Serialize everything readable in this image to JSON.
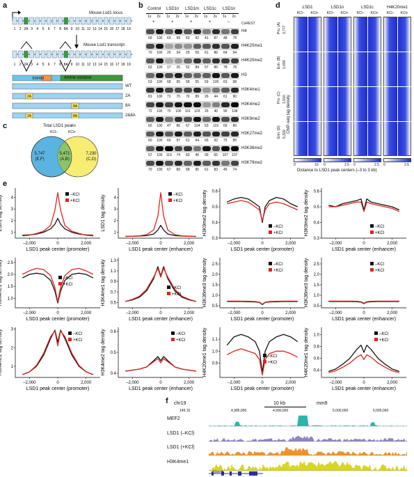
{
  "panels": {
    "a": "a",
    "b": "b",
    "c": "c",
    "d": "d",
    "e": "e",
    "f": "f"
  },
  "panel_a": {
    "locus_label": "Mouse Lsd1 locus",
    "transcript_label": "Mouse Lsd1 transcript",
    "exons": [
      "1",
      "2",
      "2A",
      "3",
      "4",
      "5",
      "6",
      "7",
      "8",
      "8A",
      "9",
      "10",
      "11",
      "12",
      "13",
      "14",
      "15",
      "16",
      "17",
      "18",
      "19"
    ],
    "domains": [
      "SWIRM",
      "Amine oxidase"
    ],
    "isoforms": [
      {
        "name": "WT",
        "inserts": []
      },
      {
        "name": "2A",
        "inserts": [
          "2A"
        ]
      },
      {
        "name": "8A",
        "inserts": [
          "8A"
        ]
      },
      {
        "name": "2&8A",
        "inserts": [
          "2A",
          "8A"
        ]
      }
    ]
  },
  "panel_b": {
    "groups": [
      "Control",
      "LSD1n",
      "LSD1m",
      "LSD1c",
      "LSD1n"
    ],
    "doses": [
      "1x",
      "2x",
      "1x",
      "2x",
      "1x",
      "2x",
      "1x",
      "2x",
      "1x",
      "2x"
    ],
    "corest_row": [
      "+",
      "",
      "+",
      "",
      "+",
      "",
      "+",
      "",
      "–",
      ""
    ],
    "corest_label": "CoREST",
    "rows": [
      {
        "name": "H4",
        "values": [
          "69",
          "100",
          "63",
          "99",
          "63",
          "92",
          "41",
          "87",
          "48",
          "78"
        ]
      },
      {
        "name": "H4K20me1",
        "values": [
          "70",
          "100",
          "20",
          "34",
          "29",
          "59",
          "61",
          "86",
          "64",
          "94"
        ]
      },
      {
        "name": "H4K20me2",
        "values": [
          "62",
          "100",
          "17",
          "26",
          "52",
          "84",
          "57",
          "86",
          "78",
          "78"
        ]
      },
      {
        "name": "H3",
        "values": [
          "53",
          "100",
          "68",
          "95",
          "58",
          "55",
          "59",
          "100",
          "63",
          "98"
        ]
      },
      {
        "name": "H3K4me1",
        "values": [
          "81",
          "100",
          "71",
          "70",
          "70",
          "89",
          "26",
          "44",
          "61",
          "90"
        ]
      },
      {
        "name": "H3K4me2",
        "values": [
          "72",
          "100",
          "75",
          "100",
          "101",
          "103",
          "25",
          "40",
          "90",
          "108"
        ]
      },
      {
        "name": "H3K9me2",
        "values": [
          "60",
          "100",
          "47",
          "86",
          "67",
          "104",
          "53",
          "101",
          "69",
          "89"
        ]
      },
      {
        "name": "H3K27me2",
        "values": [
          "60",
          "100",
          "60",
          "97",
          "61",
          "94",
          "65",
          "92",
          "75",
          "89"
        ]
      },
      {
        "name": "H3K36me2",
        "values": [
          "57",
          "100",
          "119",
          "74",
          "83",
          "46",
          "99",
          "65",
          "107",
          "107"
        ]
      },
      {
        "name": "H3K79me2",
        "values": [
          "70",
          "100",
          "67",
          "89",
          "58",
          "95",
          "61",
          "83",
          "45",
          "74"
        ]
      }
    ]
  },
  "panel_c": {
    "title": "Total LSD1 peaks",
    "left_label": "KCl–",
    "right_label": "KCl+",
    "left_only": "5,747",
    "left_only_sub": "(E,F)",
    "overlap": "5,471",
    "overlap_sub": "(A,B)",
    "right_only": "7,230",
    "right_only_sub": "(C,D)"
  },
  "panel_d": {
    "columns": [
      "LSD1",
      "LSD1n",
      "LSD1c",
      "H4K20me1"
    ],
    "subcols": [
      "KCl–",
      "KCl+"
    ],
    "y_axis_title": "ChIP-seq tag density",
    "groups": [
      {
        "label": "Pro. (A)",
        "count": "3,777"
      },
      {
        "label": "Enh. (B)",
        "count": "1,694"
      },
      {
        "label": "Pro. (C)",
        "count": "1,910"
      },
      {
        "label": "Enh. (D)",
        "count": "5,320"
      }
    ],
    "scales": [
      [
        "0",
        "10"
      ],
      [
        "0",
        "2.5"
      ],
      [
        "0",
        "2.5"
      ],
      [
        "0",
        "2.5"
      ]
    ],
    "x_axis_title": "Distance to LSD1 peak centers (–3 to 3 kb)"
  },
  "panel_e": {
    "legend": {
      "minus": "–KCl",
      "plus": "+KCl"
    },
    "colors": {
      "minus": "#111111",
      "plus": "#e0231d"
    }
  },
  "chart_data": [
    {
      "type": "line",
      "ylabel": "LSD1 tag density",
      "xlabel": "LSD1 peak center (promoter)",
      "x": [
        -2500,
        -2000,
        -1500,
        -1000,
        -500,
        -200,
        0,
        200,
        500,
        1000,
        1500,
        2000,
        2500
      ],
      "xticks": [
        "–2,000",
        "0",
        "2,000"
      ],
      "ylim": [
        0.5,
        4.8
      ],
      "yticks": [
        "1",
        "2",
        "3",
        "4"
      ],
      "series": [
        {
          "name": "–KCl",
          "values": [
            0.75,
            0.78,
            0.85,
            1.0,
            1.3,
            1.7,
            2.2,
            1.7,
            1.3,
            1.0,
            0.85,
            0.78,
            0.75
          ]
        },
        {
          "name": "+KCl",
          "values": [
            0.7,
            0.75,
            0.9,
            1.1,
            1.6,
            2.9,
            4.4,
            2.9,
            1.6,
            1.1,
            0.9,
            0.75,
            0.7
          ]
        }
      ]
    },
    {
      "type": "line",
      "ylabel": "LSD1 tag density",
      "xlabel": "LSD1 peak center (enhancer)",
      "x": [
        -2500,
        -2000,
        -1500,
        -1000,
        -500,
        -200,
        0,
        200,
        500,
        1000,
        1500,
        2000,
        2500
      ],
      "xticks": [
        "–2,000",
        "0",
        "2,000"
      ],
      "ylim": [
        0.5,
        4.8
      ],
      "yticks": [
        "1",
        "2",
        "3",
        "4"
      ],
      "series": [
        {
          "name": "–KCl",
          "values": [
            0.65,
            0.66,
            0.68,
            0.72,
            0.85,
            1.2,
            1.6,
            1.2,
            0.85,
            0.72,
            0.68,
            0.66,
            0.65
          ]
        },
        {
          "name": "+KCl",
          "values": [
            0.65,
            0.67,
            0.7,
            0.8,
            1.2,
            2.4,
            4.4,
            2.4,
            1.2,
            0.8,
            0.7,
            0.67,
            0.65
          ]
        }
      ]
    },
    {
      "type": "line",
      "ylabel": "H3K9me2 tag density",
      "xlabel": "LSD1 peak center (promoter)",
      "x": [
        -2500,
        -2000,
        -1500,
        -1000,
        -500,
        -200,
        0,
        200,
        500,
        1000,
        1500,
        2000,
        2500
      ],
      "xticks": [
        "–2,000",
        "0",
        "2,000"
      ],
      "ylim": [
        0.3,
        0.62
      ],
      "yticks": [
        "0.3",
        "0.4",
        "0.5",
        "0.6"
      ],
      "series": [
        {
          "name": "–KCl",
          "values": [
            0.53,
            0.55,
            0.56,
            0.55,
            0.52,
            0.5,
            0.4,
            0.5,
            0.54,
            0.56,
            0.55,
            0.52,
            0.5
          ]
        },
        {
          "name": "+KCl",
          "values": [
            0.52,
            0.53,
            0.54,
            0.53,
            0.5,
            0.48,
            0.41,
            0.48,
            0.52,
            0.53,
            0.52,
            0.5,
            0.48
          ]
        }
      ]
    },
    {
      "type": "line",
      "ylabel": "H3K9me2 tag density",
      "xlabel": "LSD1 peak center (enhancer)",
      "x": [
        -2500,
        -2000,
        -1500,
        -1000,
        -500,
        -200,
        0,
        200,
        500,
        1000,
        1500,
        2000,
        2500
      ],
      "xticks": [
        "–2,000",
        "0",
        "2,000"
      ],
      "ylim": [
        0.3,
        0.62
      ],
      "yticks": [
        "0.3",
        "0.4",
        "0.5",
        "0.6"
      ],
      "series": [
        {
          "name": "–KCl",
          "values": [
            0.51,
            0.5,
            0.52,
            0.53,
            0.54,
            0.55,
            0.48,
            0.55,
            0.53,
            0.52,
            0.51,
            0.5,
            0.48
          ]
        },
        {
          "name": "+KCl",
          "values": [
            0.5,
            0.5,
            0.51,
            0.52,
            0.53,
            0.53,
            0.47,
            0.53,
            0.52,
            0.51,
            0.5,
            0.49,
            0.47
          ]
        }
      ]
    },
    {
      "type": "line",
      "ylabel": "H3K4me1 tag density",
      "xlabel": "LSD1 peak center (promoter)",
      "x": [
        -2500,
        -2000,
        -1500,
        -1000,
        -500,
        -200,
        0,
        200,
        500,
        1000,
        1500,
        2000,
        2500
      ],
      "xticks": [
        "–2,000",
        "0",
        "2,000"
      ],
      "ylim": [
        0.6,
        2.7
      ],
      "yticks": [
        "1.0",
        "1.5",
        "2.0",
        "2.5"
      ],
      "series": [
        {
          "name": "–KCl",
          "values": [
            1.85,
            2.0,
            2.05,
            2.0,
            1.75,
            1.3,
            0.8,
            1.3,
            1.75,
            2.0,
            2.05,
            2.0,
            1.85
          ]
        },
        {
          "name": "+KCl",
          "values": [
            2.0,
            2.15,
            2.25,
            2.2,
            1.95,
            1.45,
            0.85,
            1.45,
            1.95,
            2.2,
            2.25,
            2.15,
            2.0
          ]
        }
      ]
    },
    {
      "type": "line",
      "ylabel": "H3K4me1 tag density",
      "xlabel": "LSD1 peak center (enhancer)",
      "x": [
        -2500,
        -2000,
        -1500,
        -1000,
        -500,
        -200,
        0,
        200,
        500,
        1000,
        1500,
        2000,
        2500
      ],
      "xticks": [
        "–2,000",
        "0",
        "2,000"
      ],
      "ylim": [
        0.4,
        1.35
      ],
      "yticks": [
        "0.5",
        "0.7",
        "0.9",
        "1.1",
        "1.3"
      ],
      "series": [
        {
          "name": "–KCl",
          "values": [
            0.52,
            0.55,
            0.6,
            0.72,
            0.95,
            1.18,
            1.0,
            1.18,
            0.95,
            0.72,
            0.6,
            0.55,
            0.52
          ]
        },
        {
          "name": "+KCl",
          "values": [
            0.52,
            0.56,
            0.62,
            0.75,
            0.98,
            1.15,
            0.98,
            1.15,
            0.98,
            0.75,
            0.62,
            0.56,
            0.52
          ]
        }
      ]
    },
    {
      "type": "line",
      "ylabel": "H3K36me3 tag density",
      "xlabel": "LSD1 peak center (promoter)",
      "x": [
        -2500,
        -2000,
        -1500,
        -1000,
        -500,
        -200,
        0,
        200,
        500,
        1000,
        1500,
        2000,
        2500
      ],
      "xticks": [
        "–2,000",
        "0",
        "2,000"
      ],
      "ylim": [
        0.4,
        2.8
      ],
      "yticks": [
        "0.5",
        "1.0",
        "1.5",
        "2.0",
        "2.5"
      ],
      "series": [
        {
          "name": "–KCl",
          "values": [
            0.7,
            0.7,
            0.7,
            0.69,
            0.68,
            0.66,
            0.55,
            0.66,
            0.68,
            0.69,
            0.7,
            0.7,
            0.7
          ]
        },
        {
          "name": "+KCl",
          "values": [
            0.72,
            0.72,
            0.72,
            0.71,
            0.7,
            0.67,
            0.57,
            0.67,
            0.7,
            0.71,
            0.72,
            0.72,
            0.72
          ]
        }
      ]
    },
    {
      "type": "line",
      "ylabel": "H3K36me3 tag density",
      "xlabel": "LSD1 peak center (enhancer)",
      "x": [
        -2500,
        -2000,
        -1500,
        -1000,
        -500,
        -200,
        0,
        200,
        500,
        1000,
        1500,
        2000,
        2500
      ],
      "xticks": [
        "–2,000",
        "0",
        "2,000"
      ],
      "ylim": [
        0.4,
        2.8
      ],
      "yticks": [
        "0.5",
        "1.0",
        "1.5",
        "2.0",
        "2.5"
      ],
      "series": [
        {
          "name": "–KCl",
          "values": [
            0.7,
            0.7,
            0.7,
            0.7,
            0.69,
            0.67,
            0.6,
            0.67,
            0.69,
            0.7,
            0.7,
            0.7,
            0.7
          ]
        },
        {
          "name": "+KCl",
          "values": [
            0.72,
            0.72,
            0.72,
            0.72,
            0.71,
            0.69,
            0.62,
            0.69,
            0.71,
            0.72,
            0.72,
            0.72,
            0.72
          ]
        }
      ]
    },
    {
      "type": "line",
      "ylabel": "H3K4me2 tag density",
      "xlabel": "LSD1 peak center (promoter)",
      "x": [
        -2500,
        -2000,
        -1500,
        -1000,
        -500,
        -200,
        0,
        200,
        500,
        1000,
        1500,
        2000,
        2500
      ],
      "xticks": [
        "–2,000",
        "0",
        "2,000"
      ],
      "ylim": [
        0.4,
        3.1
      ],
      "yticks": [
        "1",
        "2",
        "3"
      ],
      "series": [
        {
          "name": "–KCl",
          "values": [
            0.55,
            0.7,
            1.0,
            1.6,
            2.5,
            2.95,
            2.3,
            2.95,
            2.5,
            1.6,
            1.0,
            0.7,
            0.55
          ]
        },
        {
          "name": "+KCl",
          "values": [
            0.55,
            0.7,
            1.05,
            1.7,
            2.6,
            2.9,
            2.1,
            2.9,
            2.6,
            1.7,
            1.05,
            0.7,
            0.55
          ]
        }
      ]
    },
    {
      "type": "line",
      "ylabel": "H3K4me2 tag density",
      "xlabel": "LSD1 peak center (enhancer)",
      "x": [
        -2500,
        -2000,
        -1500,
        -1000,
        -500,
        -200,
        0,
        200,
        500,
        1000,
        1500,
        2000,
        2500
      ],
      "xticks": [
        "–2,000",
        "0",
        "2,000"
      ],
      "ylim": [
        0.38,
        0.62
      ],
      "yticks": [
        "0.4",
        "0.5",
        "0.6"
      ],
      "series": [
        {
          "name": "–KCl",
          "values": [
            0.41,
            0.415,
            0.42,
            0.43,
            0.46,
            0.48,
            0.46,
            0.48,
            0.46,
            0.43,
            0.42,
            0.415,
            0.41
          ]
        },
        {
          "name": "+KCl",
          "values": [
            0.41,
            0.415,
            0.42,
            0.43,
            0.455,
            0.47,
            0.45,
            0.47,
            0.455,
            0.43,
            0.42,
            0.415,
            0.41
          ]
        }
      ]
    },
    {
      "type": "line",
      "ylabel": "H4K20me1 tag density",
      "xlabel": "LSD1 peak center (promoter)",
      "x": [
        -2500,
        -2000,
        -1500,
        -1000,
        -500,
        -200,
        0,
        200,
        500,
        1000,
        1500,
        2000,
        2500
      ],
      "xticks": [
        "–2,000",
        "0",
        "2,000"
      ],
      "ylim": [
        0.78,
        1.2
      ],
      "yticks": [
        "0.9",
        "1.0",
        "1.1"
      ],
      "series": [
        {
          "name": "–KCl",
          "values": [
            1.05,
            1.12,
            1.14,
            1.12,
            1.08,
            1.0,
            0.82,
            1.0,
            1.08,
            1.12,
            1.14,
            1.12,
            1.08
          ]
        },
        {
          "name": "+KCl",
          "values": [
            0.97,
            1.0,
            1.02,
            1.0,
            0.98,
            0.93,
            0.8,
            0.93,
            0.98,
            1.0,
            1.0,
            0.98,
            0.95
          ]
        }
      ]
    },
    {
      "type": "line",
      "ylabel": "H4K20me1 tag density",
      "xlabel": "LSD1 peak center (enhancer)",
      "x": [
        -2500,
        -2000,
        -1500,
        -1000,
        -500,
        -200,
        0,
        200,
        500,
        1000,
        1500,
        2000,
        2500
      ],
      "xticks": [
        "–2,000",
        "0",
        "2,000"
      ],
      "ylim": [
        0.28,
        1.12
      ],
      "yticks": [
        "0.4",
        "0.6",
        "0.8",
        "1.0"
      ],
      "series": [
        {
          "name": "–KCl",
          "values": [
            0.38,
            0.42,
            0.5,
            0.6,
            0.75,
            0.82,
            0.7,
            0.82,
            0.75,
            0.6,
            0.5,
            0.42,
            0.38
          ]
        },
        {
          "name": "+KCl",
          "values": [
            0.36,
            0.39,
            0.45,
            0.52,
            0.62,
            0.66,
            0.58,
            0.66,
            0.62,
            0.52,
            0.45,
            0.39,
            0.36
          ]
        }
      ]
    }
  ],
  "panel_f": {
    "chrom": "chr19",
    "scale": "10 kb",
    "genome": "mm9",
    "coords": [
      "4,985,000",
      "4,990,000",
      "5,000,000",
      "5,005,000"
    ],
    "ymax_mef2": "149.15",
    "tracks": [
      {
        "name": "MEF2",
        "color": "#2ab7a9"
      },
      {
        "name": "LSD1 (–KCl)",
        "color": "#8f86c8"
      },
      {
        "name": "LSD1 (+KCl)",
        "color": "#f0922a"
      },
      {
        "name": "H3K4me1",
        "color": "#d7d628"
      }
    ],
    "gene": "Npas4"
  }
}
